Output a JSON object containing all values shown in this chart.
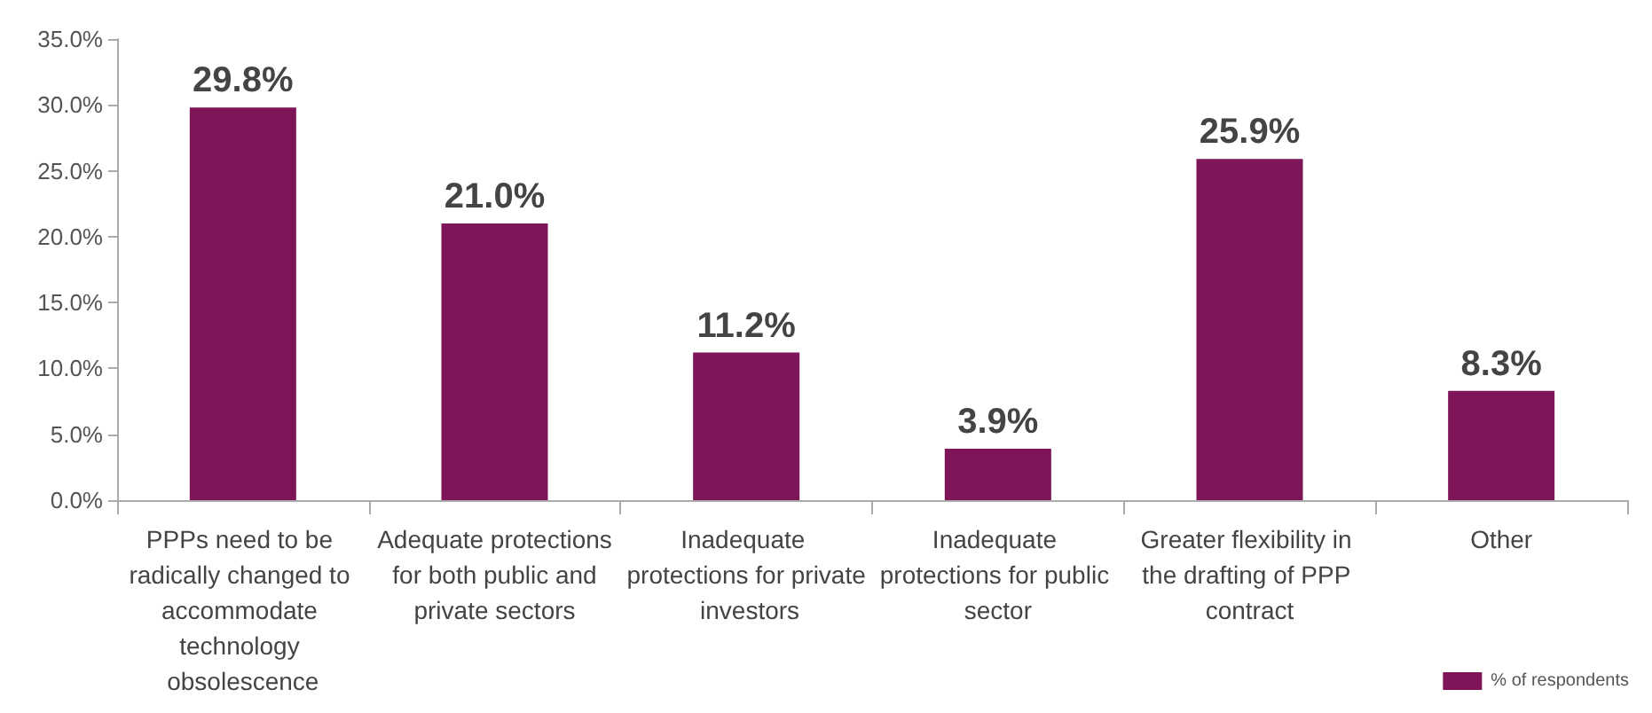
{
  "chart_data": {
    "type": "bar",
    "categories": [
      "PPPs need to be radically changed to accommodate technology obsolescence",
      "Adequate protections for both public and private sectors",
      "Inadequate protections for private investors",
      "Inadequate protections for public sector",
      "Greater flexibility in the drafting of PPP contract",
      "Other"
    ],
    "series": [
      {
        "name": "% of respondents",
        "color": "#7d1558",
        "values": [
          29.8,
          21.0,
          11.2,
          3.9,
          25.9,
          8.3
        ],
        "value_labels": [
          "29.8%",
          "21.0%",
          "11.2%",
          "3.9%",
          "25.9%",
          "8.3%"
        ]
      }
    ],
    "ylim": [
      0,
      35
    ],
    "yticks": [
      {
        "value": 0,
        "label": "0.0%"
      },
      {
        "value": 5,
        "label": "5.0%"
      },
      {
        "value": 10,
        "label": "10.0%"
      },
      {
        "value": 15,
        "label": "15.0%"
      },
      {
        "value": 20,
        "label": "20.0%"
      },
      {
        "value": 25,
        "label": "25.0%"
      },
      {
        "value": 30,
        "label": "30.0%"
      },
      {
        "value": 35,
        "label": "35.0%"
      }
    ],
    "grid": false,
    "legend": "bottom right"
  }
}
